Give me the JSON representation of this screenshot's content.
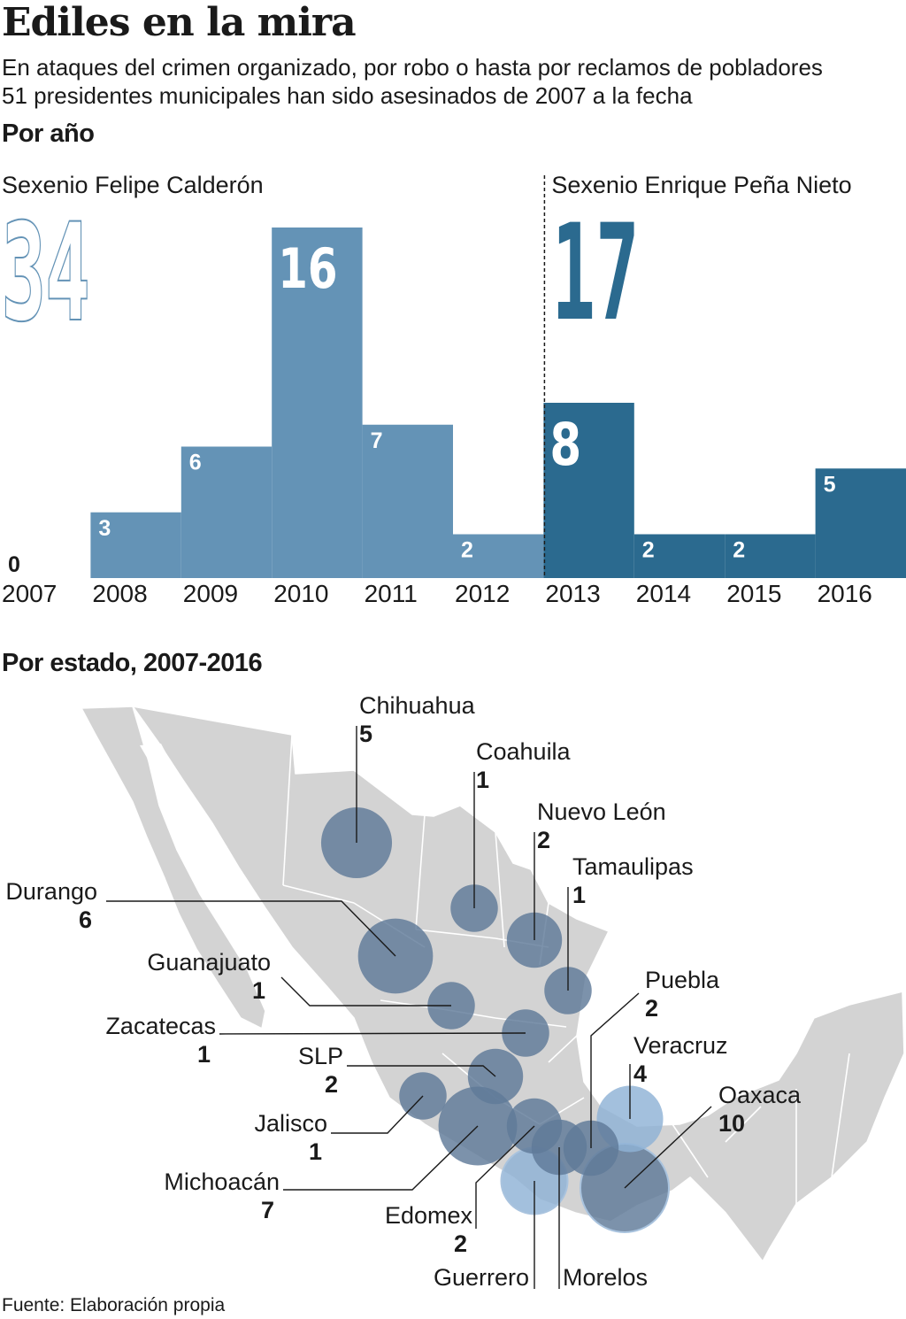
{
  "header": {
    "title": "Ediles en la mira",
    "subtitle_line1": "En ataques del crimen organizado, por robo o hasta por reclamos de pobladores",
    "subtitle_line2": "51 presidentes municipales han sido asesinados de 2007 a la fecha"
  },
  "chart_section": {
    "heading": "Por año"
  },
  "map_section": {
    "heading": "Por estado, 2007-2016"
  },
  "chart_data": {
    "type": "bar",
    "categories": [
      "2007",
      "2008",
      "2009",
      "2010",
      "2011",
      "2012",
      "2013",
      "2014",
      "2015",
      "2016"
    ],
    "values": [
      0,
      3,
      6,
      16,
      7,
      2,
      8,
      2,
      2,
      5
    ],
    "periods": [
      {
        "label": "Sexenio Felipe Calderón",
        "total": "34",
        "years": [
          "2007",
          "2008",
          "2009",
          "2010",
          "2011",
          "2012"
        ],
        "color": "#6493b6"
      },
      {
        "label": "Sexenio Enrique Peña Nieto",
        "total": "17",
        "years": [
          "2013",
          "2014",
          "2015",
          "2016"
        ],
        "color": "#2b6a8f"
      }
    ],
    "ylim": [
      0,
      16
    ],
    "grid": false,
    "legend": "none"
  },
  "map_data": {
    "bubble_color": "#5f7a99",
    "highlight_color": "#8fb2d6",
    "states": [
      {
        "name": "Chihuahua",
        "value": 5
      },
      {
        "name": "Coahuila",
        "value": 1
      },
      {
        "name": "Nuevo León",
        "value": 2
      },
      {
        "name": "Tamaulipas",
        "value": 1
      },
      {
        "name": "Durango",
        "value": 6
      },
      {
        "name": "Guanajuato",
        "value": 1
      },
      {
        "name": "Zacatecas",
        "value": 1
      },
      {
        "name": "Puebla",
        "value": 2
      },
      {
        "name": "Veracruz",
        "value": 4
      },
      {
        "name": "SLP",
        "value": 2
      },
      {
        "name": "Oaxaca",
        "value": 10
      },
      {
        "name": "Jalisco",
        "value": 1
      },
      {
        "name": "Michoacán",
        "value": 7
      },
      {
        "name": "Edomex",
        "value": 2
      },
      {
        "name": "Guerrero",
        "value": 4
      },
      {
        "name": "Morelos",
        "value": 2
      }
    ]
  },
  "footer": {
    "source": "Fuente: Elaboración propia"
  }
}
